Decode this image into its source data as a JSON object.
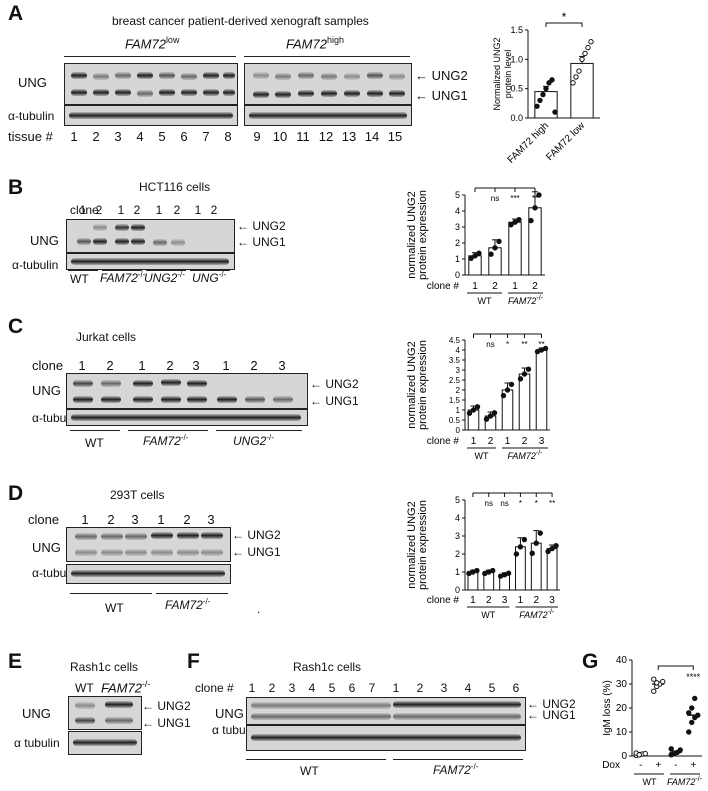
{
  "panel_A": {
    "label": "A",
    "title": "breast cancer patient-derived xenograft samples",
    "group_low": "FAM72",
    "group_low_sup": "low",
    "group_high": "FAM72",
    "group_high_sup": "high",
    "row_label_ung": "UNG",
    "row_label_tubulin": "α-tubulin",
    "tissue_label": "tissue #",
    "lanes": [
      "1",
      "2",
      "3",
      "4",
      "5",
      "6",
      "7",
      "8",
      "9",
      "10",
      "11",
      "12",
      "13",
      "14",
      "15"
    ],
    "band_upper": "UNG2",
    "band_lower": "UNG1",
    "chart_data": {
      "type": "bar",
      "categories": [
        "FAM72 high",
        "FAM72 low"
      ],
      "values": [
        0.45,
        0.93
      ],
      "errors": [
        0.09,
        0.12
      ],
      "points": [
        [
          0.2,
          0.3,
          0.4,
          0.5,
          0.6,
          0.65,
          0.1
        ],
        [
          0.6,
          0.7,
          0.8,
          1.0,
          1.1,
          1.2,
          1.3
        ]
      ],
      "ylabel": "Normalized UNG2 protein level",
      "yticks": [
        "0.0",
        "0.5",
        "1.0",
        "1.5"
      ],
      "ylim": [
        0,
        1.5
      ],
      "significance": "*"
    }
  },
  "panel_B": {
    "label": "B",
    "title": "HCT116 cells",
    "clone_label": "clone",
    "lanes": [
      "1",
      "2",
      "1",
      "2",
      "1",
      "2",
      "1",
      "2"
    ],
    "row_label_ung": "UNG",
    "row_label_tubulin": "α-tubulin",
    "band_upper": "UNG2",
    "band_lower": "UNG1",
    "groups": [
      {
        "name": "WT",
        "sup": ""
      },
      {
        "name": "FAM72",
        "sup": "-/-"
      },
      {
        "name": "UNG2",
        "sup": "-/-"
      },
      {
        "name": "UNG",
        "sup": "-/-"
      }
    ],
    "chart_data": {
      "type": "bar",
      "categories": [
        "1",
        "2",
        "1",
        "2"
      ],
      "values": [
        1.2,
        1.7,
        3.3,
        4.2
      ],
      "errors": [
        0.2,
        0.5,
        0.2,
        1.0
      ],
      "ylabel": "normalized UNG2 protein expression",
      "yticks": [
        "0",
        "1",
        "2",
        "3",
        "4",
        "5"
      ],
      "ylim": [
        0,
        5
      ],
      "xlabel": "clone #",
      "groups": [
        "WT",
        "FAM72"
      ],
      "group_sup": "-/-",
      "significance": [
        "ns",
        "***",
        "**"
      ]
    }
  },
  "panel_C": {
    "label": "C",
    "title": "Jurkat cells",
    "clone_label": "clone",
    "lanes": [
      "1",
      "2",
      "1",
      "2",
      "3",
      "1",
      "2",
      "3"
    ],
    "row_label_ung": "UNG",
    "row_label_tubulin": "α-tubulin",
    "band_upper": "UNG2",
    "band_lower": "UNG1",
    "groups": [
      {
        "name": "WT",
        "sup": ""
      },
      {
        "name": "FAM72",
        "sup": "-/-"
      },
      {
        "name": "UNG2",
        "sup": "-/-"
      }
    ],
    "chart_data": {
      "type": "bar",
      "categories": [
        "1",
        "2",
        "1",
        "2",
        "3"
      ],
      "values": [
        1.0,
        0.7,
        2.0,
        2.8,
        4.0
      ],
      "errors": [
        0.2,
        0.2,
        0.35,
        0.3,
        0.1
      ],
      "ylabel": "normalized UNG2 protein expression",
      "yticks": [
        "0",
        "0.5",
        "1",
        "1.5",
        "2",
        "2.5",
        "3",
        "3.5",
        "4",
        "4.5"
      ],
      "ylim": [
        0,
        4.5
      ],
      "xlabel": "clone #",
      "groups": [
        "WT",
        "FAM72"
      ],
      "group_sup": "-/-",
      "significance": [
        "ns",
        "*",
        "**",
        "**"
      ]
    }
  },
  "panel_D": {
    "label": "D",
    "title": "293T cells",
    "clone_label": "clone",
    "lanes": [
      "1",
      "2",
      "3",
      "1",
      "2",
      "3"
    ],
    "row_label_ung": "UNG",
    "row_label_tubulin": "α-tubulin",
    "band_upper": "UNG2",
    "band_lower": "UNG1",
    "groups": [
      {
        "name": "WT",
        "sup": ""
      },
      {
        "name": "FAM72",
        "sup": "-/-"
      }
    ],
    "stray_mark": ".",
    "chart_data": {
      "type": "bar",
      "categories": [
        "1",
        "2",
        "3",
        "1",
        "2",
        "3"
      ],
      "values": [
        1.0,
        1.0,
        0.85,
        2.4,
        2.6,
        2.3
      ],
      "errors": [
        0.1,
        0.1,
        0.1,
        0.5,
        0.7,
        0.2
      ],
      "ylabel": "normalized UNG2 protein expression",
      "yticks": [
        "0",
        "1",
        "2",
        "3",
        "4",
        "5"
      ],
      "ylim": [
        0,
        5
      ],
      "xlabel": "clone #",
      "groups": [
        "WT",
        "FAM72"
      ],
      "group_sup": "-/-",
      "significance": [
        "ns",
        "ns",
        "*",
        "*",
        "**"
      ]
    }
  },
  "panel_E": {
    "label": "E",
    "title": "Rash1c cells",
    "lane_wt": "WT",
    "lane_ko": "FAM72",
    "lane_ko_sup": "-/-",
    "row_label_ung": "UNG",
    "row_label_tubulin": "α tubulin",
    "band_upper": "UNG2",
    "band_lower": "UNG1"
  },
  "panel_F": {
    "label": "F",
    "title": "Rash1c cells",
    "clone_label": "clone #",
    "lanes": [
      "1",
      "2",
      "3",
      "4",
      "5",
      "6",
      "7",
      "1",
      "2",
      "3",
      "4",
      "5",
      "6"
    ],
    "row_label_ung": "UNG",
    "row_label_tubulin": "α tubulin",
    "band_upper": "UNG2",
    "band_lower": "UNG1",
    "groups": [
      {
        "name": "WT",
        "sup": ""
      },
      {
        "name": "FAM72",
        "sup": "-/-"
      }
    ]
  },
  "panel_G": {
    "label": "G",
    "chart_data": {
      "type": "scatter",
      "categories": [
        "-",
        "+",
        "-",
        "+"
      ],
      "means": [
        0.8,
        30,
        1.5,
        17
      ],
      "points": [
        [
          0.3,
          0.6,
          0.8,
          1.0,
          1.2,
          0.5
        ],
        [
          27,
          29,
          30,
          31,
          32,
          30.5
        ],
        [
          0.5,
          1.0,
          1.5,
          2.5,
          3.0,
          1.2
        ],
        [
          10,
          14,
          16,
          17,
          18,
          20,
          24
        ]
      ],
      "ylabel": "IgM loss (%)",
      "yticks": [
        "0",
        "10",
        "20",
        "30",
        "40"
      ],
      "ylim": [
        0,
        40
      ],
      "xlabel": "Dox",
      "groups": [
        "WT",
        "FAM72"
      ],
      "group_sup": "-/-",
      "significance": "****"
    }
  }
}
